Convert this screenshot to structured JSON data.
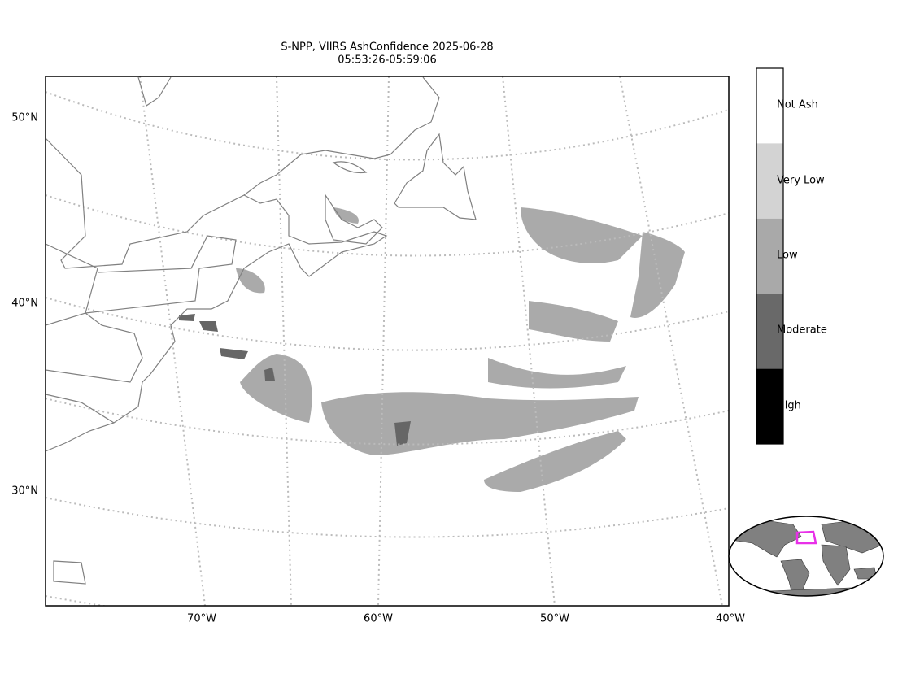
{
  "title": [
    "S-NPP, VIIRS AshConfidence 2025-06-28",
    "05:53:26-05:59:06"
  ],
  "lat_labels": [
    "50°N",
    "40°N",
    "30°N"
  ],
  "lon_labels": [
    "70°W",
    "60°W",
    "50°W",
    "40°W"
  ],
  "legend": [
    "Not Ash",
    "Very Low",
    "Low",
    "Moderate",
    "High"
  ]
}
